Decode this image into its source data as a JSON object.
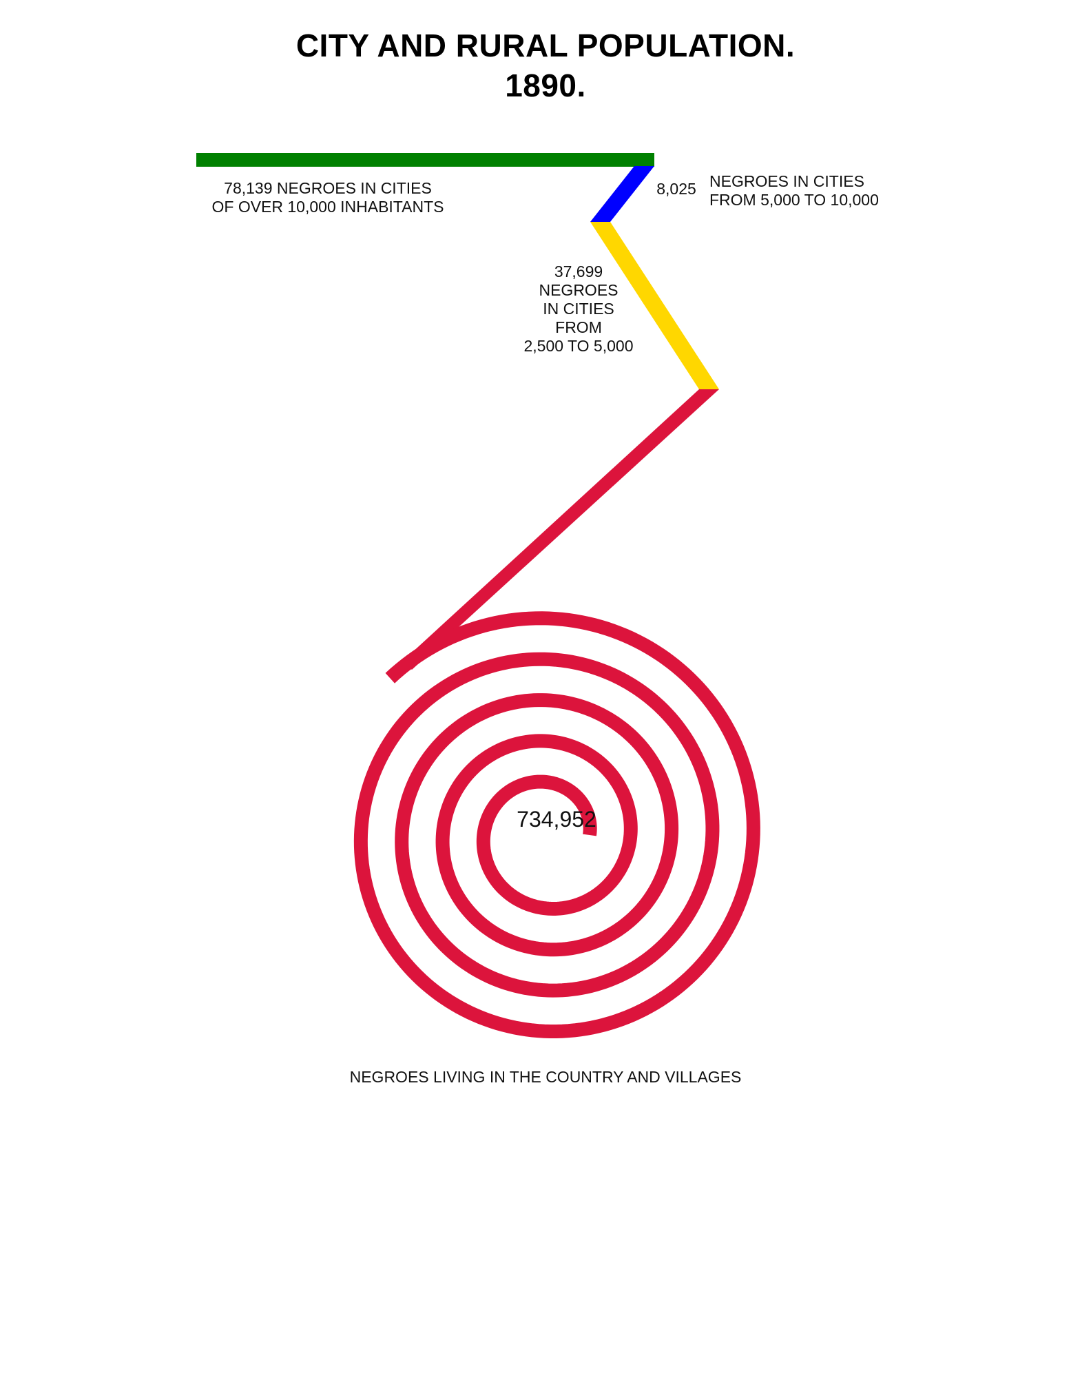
{
  "chart_data": {
    "type": "spiral",
    "title": "CITY AND RURAL POPULATION.",
    "subtitle": "1890.",
    "segments": [
      {
        "name": "cities_over_10000",
        "value": 78139,
        "value_label": "78,139",
        "label_lines": [
          "78,139 NEGROES IN CITIES",
          "OF OVER 10,000 INHABITANTS"
        ],
        "color": "#008000"
      },
      {
        "name": "cities_5000_to_10000",
        "value": 8025,
        "value_label": "8,025",
        "label_lines": [
          "NEGROES IN CITIES",
          "FROM 5,000 TO 10,000"
        ],
        "color": "#0000ff"
      },
      {
        "name": "cities_2500_to_5000",
        "value": 37699,
        "value_label": "37,699",
        "label_lines": [
          "37,699",
          "NEGROES",
          "IN CITIES",
          "FROM",
          "2,500 TO 5,000"
        ],
        "color": "#ffd700"
      },
      {
        "name": "country_and_villages",
        "value": 734952,
        "value_label": "734,952",
        "label_lines": [
          "NEGROES LIVING IN THE COUNTRY AND VILLAGES"
        ],
        "color": "#dc143c"
      }
    ]
  }
}
